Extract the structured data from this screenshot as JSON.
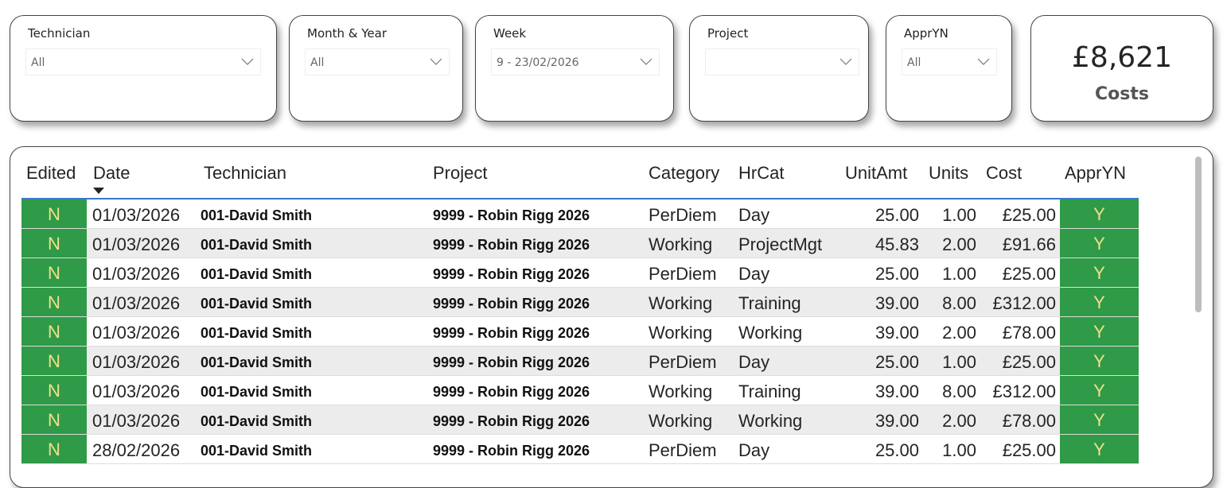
{
  "filters": [
    {
      "label": "Technician",
      "value": "All"
    },
    {
      "label": "Month & Year",
      "value": "All"
    },
    {
      "label": "Week",
      "value": "9 - 23/02/2026"
    },
    {
      "label": "Project",
      "value": ""
    },
    {
      "label": "ApprYN",
      "value": "All"
    }
  ],
  "kpi": {
    "value": "£8,621",
    "label": "Costs"
  },
  "table": {
    "columns": [
      "Edited",
      "Date",
      "Technician",
      "Project",
      "Category",
      "HrCat",
      "UnitAmt",
      "Units",
      "Cost",
      "ApprYN"
    ],
    "sort": {
      "column": "Date",
      "direction": "descending"
    },
    "flag_color": "#2f9a47",
    "rows": [
      [
        "N",
        "01/03/2026",
        "001-David Smith",
        "9999 - Robin Rigg 2026",
        "PerDiem",
        "Day",
        "25.00",
        "1.00",
        "£25.00",
        "Y"
      ],
      [
        "N",
        "01/03/2026",
        "001-David Smith",
        "9999 - Robin Rigg 2026",
        "Working",
        "ProjectMgt",
        "45.83",
        "2.00",
        "£91.66",
        "Y"
      ],
      [
        "N",
        "01/03/2026",
        "001-David Smith",
        "9999 - Robin Rigg 2026",
        "PerDiem",
        "Day",
        "25.00",
        "1.00",
        "£25.00",
        "Y"
      ],
      [
        "N",
        "01/03/2026",
        "001-David Smith",
        "9999 - Robin Rigg 2026",
        "Working",
        "Training",
        "39.00",
        "8.00",
        "£312.00",
        "Y"
      ],
      [
        "N",
        "01/03/2026",
        "001-David Smith",
        "9999 - Robin Rigg 2026",
        "Working",
        "Working",
        "39.00",
        "2.00",
        "£78.00",
        "Y"
      ],
      [
        "N",
        "01/03/2026",
        "001-David Smith",
        "9999 - Robin Rigg 2026",
        "PerDiem",
        "Day",
        "25.00",
        "1.00",
        "£25.00",
        "Y"
      ],
      [
        "N",
        "01/03/2026",
        "001-David Smith",
        "9999 - Robin Rigg 2026",
        "Working",
        "Training",
        "39.00",
        "8.00",
        "£312.00",
        "Y"
      ],
      [
        "N",
        "01/03/2026",
        "001-David Smith",
        "9999 - Robin Rigg 2026",
        "Working",
        "Working",
        "39.00",
        "2.00",
        "£78.00",
        "Y"
      ],
      [
        "N",
        "28/02/2026",
        "001-David Smith",
        "9999 - Robin Rigg 2026",
        "PerDiem",
        "Day",
        "25.00",
        "1.00",
        "£25.00",
        "Y"
      ]
    ]
  }
}
